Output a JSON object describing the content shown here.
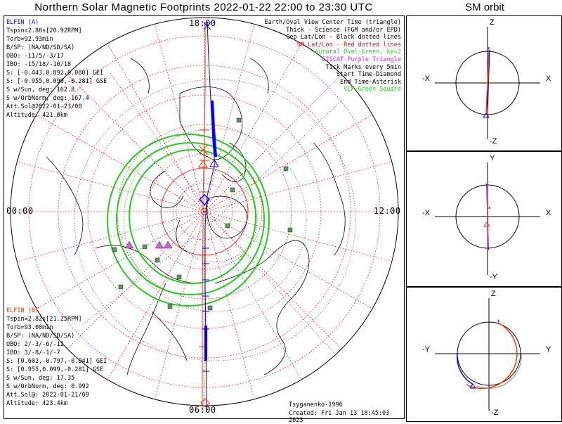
{
  "title": "Northern Solar Magnetic Footprints 2022-01-22 22:00 to 23:30 UTC",
  "orbit_title": "SM orbit",
  "hours": {
    "top": "18:00",
    "left": "00:00",
    "right": "12:00",
    "bottom": "06:00"
  },
  "elfin_a": {
    "name": "ELFIN (A)",
    "color": "#0000ff",
    "lines": [
      "Tspin=2.88s[20.92RPM]",
      "Torb=92.93min",
      "B/SP: (NA/ND/SD/SA)",
      "OBO: -11/5/-3/17",
      "IBO: -15/18/-10/18",
      "S: [-0.443,0.892,0.080] GEI",
      "S: [-0.955,0.090,-0.281] GSE",
      "S w/Sun, deg: 162.8",
      "S w/OrbNorm, deg: 167.4",
      "Att.Sol@2022-01-23/00",
      "Altitude: 421.0km"
    ]
  },
  "elfin_b": {
    "name": "ELFIN (B)",
    "color": "#ff3300",
    "lines": [
      "Tspin=2.82s[21.25RPM]",
      "Torb=93.00min",
      "B/SP: (NA/ND/SD/SA)",
      "OBO: 2/-3/-6/-12",
      "IBO: 3/-8/-1/-7",
      "S: [0.602,-0.797,-0.041] GEI",
      "S: [0.955,0.099,-0.281] GSE",
      "S w/Sun, deg: 17.35",
      "S w/OrbNorm, deg: 0.992",
      "Att.Sol@: 2022-01-21/09",
      "Altitude: 423.4km"
    ]
  },
  "legend": [
    {
      "text": "Earth/Oval View Center Time (triangle)",
      "color": "#000000"
    },
    {
      "text": "Thick - Science (FGM and/or EPD)",
      "color": "#000000"
    },
    {
      "text": "Geo Lat/Lon - Black dotted lines",
      "color": "#000000"
    },
    {
      "text": "SM Lat/Lon - Red dotted lines",
      "color": "#ff0000"
    },
    {
      "text": "Auroral Oval-Green, kp=2",
      "color": "#22cc22"
    },
    {
      "text": "EISCAT-Purple Triangle",
      "color": "#cc33cc"
    },
    {
      "text": "Tick Marks every 5min",
      "color": "#000000"
    },
    {
      "text": "Start Time-Diamond",
      "color": "#000000"
    },
    {
      "text": "End Time-Asterisk",
      "color": "#000000"
    },
    {
      "text": "VLF-Green Square",
      "color": "#22cc22"
    }
  ],
  "credit": "Tsyganenko-1996",
  "created": "Created: Fri Jan 13 18:45:03 2023",
  "orbit_panels": [
    {
      "top": "Z",
      "bottom": "-Z",
      "left": "-X",
      "right": "X"
    },
    {
      "top": "Y",
      "bottom": "-Y",
      "left": "-X",
      "right": "X"
    },
    {
      "top": "Z",
      "bottom": "-Z",
      "left": "-Y",
      "right": "Y"
    }
  ]
}
